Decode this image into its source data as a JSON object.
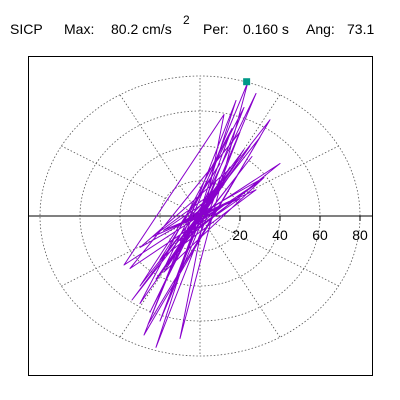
{
  "header": {
    "station": "SICP",
    "max_label": "Max:",
    "max_value": "80.2 cm/s",
    "max_exponent": "2",
    "per_label": "Per:",
    "per_value": "0.160 s",
    "ang_label": "Ang:",
    "ang_value": "73.1"
  },
  "colors": {
    "trace": "#8800cc",
    "marker": "#009988",
    "grid": "#555555",
    "axis": "#000000"
  },
  "chart_data": {
    "type": "polar-line",
    "radial_ticks": [
      20,
      40,
      60,
      80
    ],
    "radial_max": 85,
    "angular_grid_step_deg": 30,
    "peak": {
      "amplitude": 80.2,
      "angle_deg": 73.1
    },
    "trace_points": [
      [
        0,
        0
      ],
      [
        4,
        2
      ],
      [
        -3,
        -5
      ],
      [
        6,
        9
      ],
      [
        -8,
        -4
      ],
      [
        10,
        18
      ],
      [
        -12,
        -20
      ],
      [
        15,
        28
      ],
      [
        -18,
        -30
      ],
      [
        12,
        40
      ],
      [
        22,
        62
      ],
      [
        -15,
        -45
      ],
      [
        8,
        20
      ],
      [
        -25,
        -55
      ],
      [
        28,
        70
      ],
      [
        -20,
        -60
      ],
      [
        16,
        50
      ],
      [
        -30,
        -50
      ],
      [
        25,
        40
      ],
      [
        -5,
        -10
      ],
      [
        30,
        20
      ],
      [
        -35,
        -30
      ],
      [
        20,
        48
      ],
      [
        -22,
        -75
      ],
      [
        18,
        66
      ],
      [
        -28,
        -68
      ],
      [
        35,
        55
      ],
      [
        -30,
        -40
      ],
      [
        10,
        30
      ],
      [
        -20,
        -25
      ],
      [
        40,
        30
      ],
      [
        -38,
        -28
      ],
      [
        12,
        58
      ],
      [
        -10,
        -70
      ],
      [
        24,
        76.7
      ],
      [
        -26,
        -62
      ],
      [
        30,
        45
      ],
      [
        -34,
        -48
      ],
      [
        22,
        38
      ],
      [
        -18,
        -32
      ],
      [
        32,
        22
      ],
      [
        -30,
        -18
      ],
      [
        14,
        26
      ],
      [
        -12,
        -22
      ],
      [
        26,
        34
      ],
      [
        -22,
        -36
      ],
      [
        18,
        30
      ],
      [
        -16,
        -28
      ],
      [
        10,
        20
      ],
      [
        -8,
        -16
      ],
      [
        28,
        15
      ],
      [
        -24,
        -12
      ],
      [
        12,
        18
      ],
      [
        -10,
        -14
      ],
      [
        20,
        10
      ],
      [
        -18,
        -8
      ],
      [
        8,
        12
      ],
      [
        -6,
        -10
      ],
      [
        14,
        8
      ],
      [
        -12,
        -6
      ],
      [
        6,
        8
      ],
      [
        -5,
        -6
      ],
      [
        10,
        5
      ],
      [
        -8,
        -4
      ],
      [
        4,
        5
      ],
      [
        -3,
        -4
      ],
      [
        6,
        3
      ],
      [
        -5,
        -2
      ],
      [
        2,
        3
      ],
      [
        0,
        0
      ]
    ]
  }
}
